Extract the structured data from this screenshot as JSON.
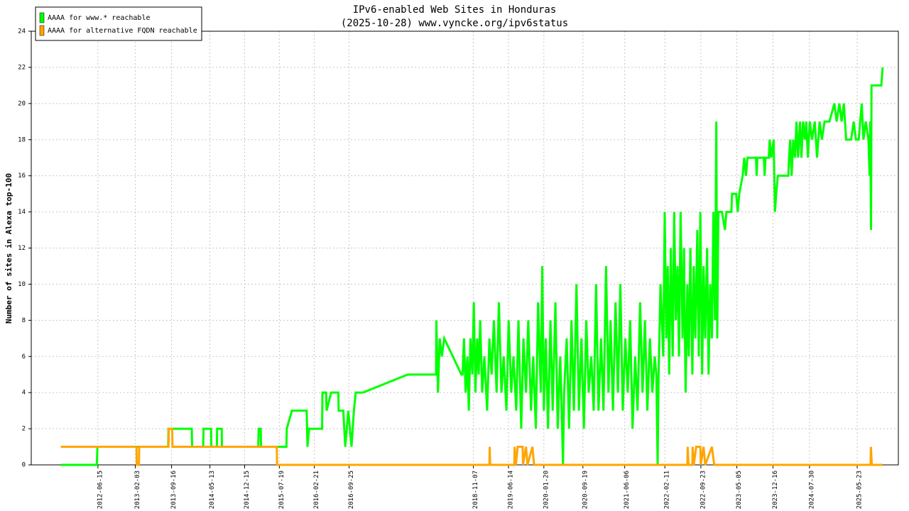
{
  "chart_data": {
    "type": "line",
    "title": "IPv6-enabled Web Sites in Honduras",
    "subtitle": "(2025-10-28) www.vyncke.org/ipv6status",
    "y_label": "Number of sites in Alexa top-100",
    "xlim": [
      "2011-04-27",
      "2026-02-03"
    ],
    "xticks": [
      "2012-06-15",
      "2013-02-03",
      "2013-09-16",
      "2014-05-13",
      "2014-12-15",
      "2015-07-19",
      "2016-02-21",
      "2016-09-25",
      "2018-11-07",
      "2019-06-14",
      "2020-01-20",
      "2020-09-19",
      "2021-06-06",
      "2022-02-11",
      "2022-09-23",
      "2023-05-05",
      "2023-12-16",
      "2024-07-30",
      "2025-05-23"
    ],
    "ylim": [
      0,
      24
    ],
    "yticks": [
      0,
      2,
      4,
      6,
      8,
      10,
      12,
      14,
      16,
      18,
      20,
      22,
      24
    ],
    "grid": true,
    "legend": "upper left",
    "series": [
      {
        "name": "AAAA for www.* reachable",
        "color": "#00ff00",
        "x": [
          "2011-10-28",
          "2012-06-08",
          "2012-06-12",
          "2013-08-26",
          "2013-08-28",
          "2014-01-20",
          "2014-01-22",
          "2014-04-01",
          "2014-04-03",
          "2014-05-20",
          "2014-05-22",
          "2014-06-25",
          "2014-06-27",
          "2014-07-25",
          "2014-07-27",
          "2015-03-10",
          "2015-03-12",
          "2015-03-25",
          "2015-03-27",
          "2015-09-01",
          "2015-09-03",
          "2015-10-05",
          "2016-01-05",
          "2016-01-10",
          "2016-01-20",
          "2016-04-10",
          "2016-04-12",
          "2016-05-05",
          "2016-05-08",
          "2016-06-05",
          "2016-07-20",
          "2016-07-22",
          "2016-08-20",
          "2016-09-01",
          "2016-09-20",
          "2016-10-10",
          "2016-10-25",
          "2016-11-05",
          "2016-12-20",
          "2017-09-25",
          "2018-03-20",
          "2018-03-22",
          "2018-04-01",
          "2018-04-12",
          "2018-04-25",
          "2018-05-10",
          "2018-08-25",
          "2018-09-01",
          "2018-09-10",
          "2018-09-20",
          "2018-10-01",
          "2018-10-10",
          "2018-10-20",
          "2018-11-01",
          "2018-11-10",
          "2018-11-20",
          "2018-12-01",
          "2018-12-10",
          "2018-12-20",
          "2019-01-01",
          "2019-01-15",
          "2019-02-01",
          "2019-02-15",
          "2019-03-01",
          "2019-03-15",
          "2019-04-01",
          "2019-04-15",
          "2019-05-01",
          "2019-05-15",
          "2019-06-01",
          "2019-06-15",
          "2019-07-01",
          "2019-07-15",
          "2019-08-01",
          "2019-08-15",
          "2019-09-01",
          "2019-09-15",
          "2019-10-01",
          "2019-10-15",
          "2019-11-01",
          "2019-11-15",
          "2019-12-01",
          "2019-12-15",
          "2020-01-01",
          "2020-01-10",
          "2020-01-20",
          "2020-02-01",
          "2020-02-15",
          "2020-03-01",
          "2020-03-15",
          "2020-04-01",
          "2020-04-15",
          "2020-05-01",
          "2020-05-10",
          "2020-05-18",
          "2020-05-25",
          "2020-06-10",
          "2020-06-25",
          "2020-07-10",
          "2020-07-25",
          "2020-08-10",
          "2020-08-25",
          "2020-09-10",
          "2020-09-25",
          "2020-10-10",
          "2020-10-25",
          "2020-11-10",
          "2020-11-25",
          "2020-12-10",
          "2020-12-25",
          "2021-01-10",
          "2021-01-25",
          "2021-02-10",
          "2021-02-25",
          "2021-03-10",
          "2021-03-25",
          "2021-04-10",
          "2021-04-25",
          "2021-05-10",
          "2021-05-25",
          "2021-06-10",
          "2021-06-25",
          "2021-07-10",
          "2021-07-25",
          "2021-08-10",
          "2021-08-25",
          "2021-09-10",
          "2021-09-25",
          "2021-10-10",
          "2021-10-25",
          "2021-11-10",
          "2021-11-25",
          "2021-12-10",
          "2021-12-20",
          "2021-12-28",
          "2022-01-03",
          "2022-01-15",
          "2022-02-01",
          "2022-02-10",
          "2022-02-20",
          "2022-03-01",
          "2022-03-10",
          "2022-03-20",
          "2022-04-01",
          "2022-04-10",
          "2022-04-20",
          "2022-05-01",
          "2022-05-10",
          "2022-05-20",
          "2022-06-01",
          "2022-06-10",
          "2022-06-20",
          "2022-07-01",
          "2022-07-10",
          "2022-07-20",
          "2022-08-01",
          "2022-08-10",
          "2022-08-20",
          "2022-09-01",
          "2022-09-10",
          "2022-09-20",
          "2022-10-01",
          "2022-10-10",
          "2022-10-20",
          "2022-11-01",
          "2022-11-10",
          "2022-11-20",
          "2022-12-01",
          "2022-12-10",
          "2022-12-20",
          "2022-12-28",
          "2023-01-03",
          "2023-01-10",
          "2023-02-01",
          "2023-02-20",
          "2023-03-01",
          "2023-04-01",
          "2023-04-05",
          "2023-05-01",
          "2023-05-10",
          "2023-05-20",
          "2023-06-10",
          "2023-06-20",
          "2023-07-01",
          "2023-07-10",
          "2023-09-01",
          "2023-09-05",
          "2023-09-10",
          "2023-10-20",
          "2023-10-25",
          "2023-10-30",
          "2023-11-20",
          "2023-11-25",
          "2023-12-05",
          "2023-12-20",
          "2023-12-28",
          "2024-01-05",
          "2024-01-15",
          "2024-03-20",
          "2024-03-25",
          "2024-04-01",
          "2024-04-10",
          "2024-04-20",
          "2024-05-01",
          "2024-05-10",
          "2024-05-20",
          "2024-06-01",
          "2024-06-10",
          "2024-06-20",
          "2024-07-01",
          "2024-07-10",
          "2024-07-20",
          "2024-08-01",
          "2024-08-15",
          "2024-09-01",
          "2024-09-15",
          "2024-10-01",
          "2024-10-15",
          "2024-11-01",
          "2024-12-01",
          "2025-01-01",
          "2025-01-15",
          "2025-02-01",
          "2025-02-15",
          "2025-03-01",
          "2025-03-15",
          "2025-04-15",
          "2025-05-01",
          "2025-05-15",
          "2025-06-01",
          "2025-06-20",
          "2025-07-01",
          "2025-07-15",
          "2025-08-01",
          "2025-08-08",
          "2025-08-12",
          "2025-08-17",
          "2025-08-20",
          "2025-10-20",
          "2025-10-28"
        ],
        "values": [
          0,
          0,
          1,
          1,
          2,
          2,
          1,
          1,
          2,
          2,
          1,
          1,
          2,
          2,
          1,
          1,
          2,
          2,
          1,
          1,
          2,
          3,
          3,
          1,
          2,
          2,
          4,
          4,
          3,
          4,
          4,
          3,
          3,
          1,
          3,
          1,
          3,
          4,
          4,
          5,
          5,
          8,
          4,
          7,
          6,
          7,
          5,
          5,
          7,
          4,
          6,
          3,
          7,
          5,
          9,
          4,
          7,
          5,
          8,
          4,
          6,
          3,
          7,
          5,
          8,
          4,
          9,
          4,
          6,
          3,
          8,
          4,
          6,
          3,
          8,
          2,
          7,
          4,
          8,
          3,
          6,
          2,
          9,
          4,
          11,
          3,
          7,
          2,
          8,
          3,
          9,
          2,
          6,
          3,
          0,
          4,
          7,
          2,
          8,
          3,
          10,
          3,
          7,
          2,
          8,
          4,
          6,
          3,
          10,
          3,
          7,
          3,
          11,
          4,
          8,
          3,
          9,
          4,
          10,
          3,
          7,
          4,
          8,
          2,
          6,
          3,
          9,
          4,
          8,
          3,
          7,
          4,
          6,
          5,
          0,
          5,
          10,
          6,
          14,
          7,
          11,
          5,
          12,
          6,
          14,
          8,
          11,
          6,
          14,
          7,
          12,
          4,
          10,
          6,
          12,
          5,
          11,
          7,
          13,
          6,
          14,
          5,
          11,
          7,
          12,
          5,
          10,
          7,
          14,
          8,
          19,
          7,
          14,
          14,
          13,
          14,
          14,
          15,
          15,
          14,
          15,
          16,
          17,
          16,
          17,
          17,
          16,
          17,
          17,
          16,
          17,
          17,
          18,
          17,
          18,
          14,
          15,
          16,
          16,
          17,
          18,
          16,
          18,
          17,
          19,
          17,
          19,
          17,
          19,
          18,
          19,
          17,
          19,
          18,
          19,
          17,
          19,
          18,
          19,
          19,
          20,
          19,
          20,
          19,
          20,
          18,
          18,
          19,
          18,
          18,
          20,
          18,
          19,
          18,
          16,
          19,
          13,
          21,
          21,
          22
        ]
      },
      {
        "name": "AAAA for alternative FQDN reachable",
        "color": "#ffa500",
        "x": [
          "2011-10-28",
          "2013-02-10",
          "2013-02-12",
          "2013-02-25",
          "2013-02-27",
          "2013-08-28",
          "2013-08-30",
          "2013-09-20",
          "2013-09-22",
          "2015-07-03",
          "2015-07-05",
          "2019-02-15",
          "2019-02-17",
          "2019-02-20",
          "2019-07-20",
          "2019-07-22",
          "2019-07-30",
          "2019-08-10",
          "2019-09-10",
          "2019-09-12",
          "2019-10-01",
          "2019-10-10",
          "2019-11-10",
          "2019-11-20",
          "2022-07-01",
          "2022-07-03",
          "2022-07-08",
          "2022-08-01",
          "2022-08-03",
          "2022-08-10",
          "2022-08-25",
          "2022-09-20",
          "2022-09-22",
          "2022-10-10",
          "2022-10-20",
          "2022-12-01",
          "2022-12-15",
          "2025-08-14",
          "2025-08-16",
          "2025-08-22",
          "2025-10-28"
        ],
        "values": [
          1,
          1,
          0,
          0,
          1,
          1,
          2,
          2,
          1,
          1,
          0,
          0,
          1,
          0,
          0,
          1,
          0,
          1,
          1,
          0,
          1,
          0,
          1,
          0,
          0,
          1,
          0,
          0,
          1,
          0,
          1,
          1,
          0,
          1,
          0,
          1,
          0,
          0,
          1,
          0,
          0
        ]
      }
    ]
  }
}
